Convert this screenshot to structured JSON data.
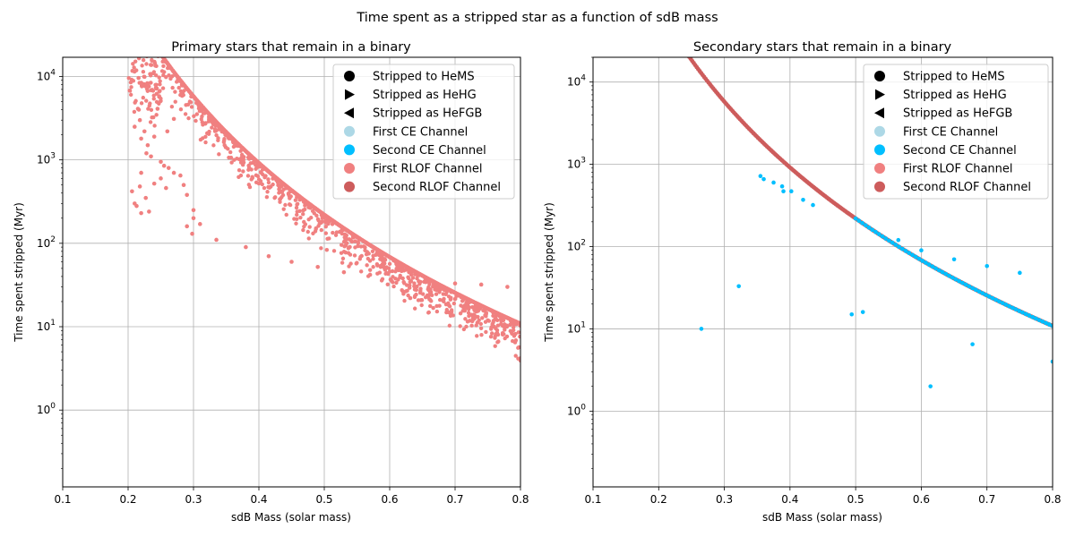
{
  "figure": {
    "suptitle": "Time spent as a stripped star as a function of sdB mass"
  },
  "legend": {
    "entries": [
      {
        "label": "Stripped to HeMS",
        "marker": "circle",
        "color": "#000000"
      },
      {
        "label": "Stripped as HeHG",
        "marker": "triangle-right",
        "color": "#000000"
      },
      {
        "label": "Stripped as HeFGB",
        "marker": "triangle-left",
        "color": "#000000"
      },
      {
        "label": "First CE Channel",
        "marker": "circle",
        "color": "#add8e6"
      },
      {
        "label": "Second CE Channel",
        "marker": "circle",
        "color": "#00bfff"
      },
      {
        "label": "First RLOF Channel",
        "marker": "circle",
        "color": "#f08080"
      },
      {
        "label": "Second RLOF Channel",
        "marker": "circle",
        "color": "#cd5c5c"
      }
    ],
    "placement": "top-right"
  },
  "chart_data": [
    {
      "type": "scatter",
      "title": "Primary stars that remain in a binary",
      "xlabel": "sdB Mass (solar mass)",
      "ylabel": "Time spent stripped (Myr)",
      "xlim": [
        0.1,
        0.8
      ],
      "ylim": [
        0.12,
        17000
      ],
      "yscale": "log",
      "grid": true,
      "x_ticks": [
        "0.1",
        "0.2",
        "0.3",
        "0.4",
        "0.5",
        "0.6",
        "0.7",
        "0.8"
      ],
      "y_ticks": [
        {
          "base": "10",
          "exp": "0"
        },
        {
          "base": "10",
          "exp": "1"
        },
        {
          "base": "10",
          "exp": "2"
        },
        {
          "base": "10",
          "exp": "3"
        },
        {
          "base": "10",
          "exp": "4"
        }
      ],
      "series": [
        {
          "name": "First RLOF Channel",
          "color": "#f08080",
          "curve": {
            "formula": "y = 2.6 * x^-6.4",
            "x_range": [
              0.25,
              0.8
            ],
            "samples": 240,
            "envelope": "upper"
          },
          "scatter_region": {
            "x_range": [
              0.2,
              0.8
            ],
            "n_points": 2300,
            "y_min_fraction_of_curve": 0.55,
            "y_spread_decades": 0.45,
            "seed": 7
          },
          "points": [
            [
              0.216,
              9600
            ],
            [
              0.22,
              8400
            ],
            [
              0.215,
              4100
            ],
            [
              0.218,
              3000
            ],
            [
              0.21,
              2500
            ],
            [
              0.225,
              2200
            ],
            [
              0.22,
              1800
            ],
            [
              0.24,
              1900
            ],
            [
              0.23,
              1500
            ],
            [
              0.228,
              1200
            ],
            [
              0.235,
              1100
            ],
            [
              0.25,
              950
            ],
            [
              0.255,
              850
            ],
            [
              0.262,
              800
            ],
            [
              0.27,
              700
            ],
            [
              0.22,
              700
            ],
            [
              0.218,
              480
            ],
            [
              0.206,
              420
            ],
            [
              0.21,
              300
            ],
            [
              0.213,
              280
            ],
            [
              0.22,
              230
            ],
            [
              0.232,
              240
            ],
            [
              0.227,
              350
            ],
            [
              0.24,
              520
            ],
            [
              0.258,
              460
            ],
            [
              0.25,
              600
            ],
            [
              0.28,
              650
            ],
            [
              0.285,
              500
            ],
            [
              0.29,
              380
            ],
            [
              0.3,
              250
            ],
            [
              0.245,
              4100
            ],
            [
              0.27,
              3100
            ],
            [
              0.26,
              2200
            ],
            [
              0.3,
              200
            ],
            [
              0.31,
              170
            ],
            [
              0.29,
              160
            ],
            [
              0.298,
              130
            ],
            [
              0.335,
              110
            ],
            [
              0.38,
              90
            ],
            [
              0.415,
              70
            ],
            [
              0.45,
              60
            ],
            [
              0.49,
              52
            ],
            [
              0.53,
              45
            ],
            [
              0.57,
              42
            ],
            [
              0.62,
              38
            ],
            [
              0.66,
              35
            ],
            [
              0.7,
              33
            ],
            [
              0.74,
              32
            ],
            [
              0.78,
              30
            ]
          ]
        }
      ]
    },
    {
      "type": "scatter",
      "title": "Secondary stars that remain in a binary",
      "xlabel": "sdB Mass (solar mass)",
      "ylabel": "Time spent stripped (Myr)",
      "xlim": [
        0.1,
        0.8
      ],
      "ylim": [
        0.12,
        20000
      ],
      "yscale": "log",
      "grid": true,
      "x_ticks": [
        "0.1",
        "0.2",
        "0.3",
        "0.4",
        "0.5",
        "0.6",
        "0.7",
        "0.8"
      ],
      "y_ticks": [
        {
          "base": "10",
          "exp": "0"
        },
        {
          "base": "10",
          "exp": "1"
        },
        {
          "base": "10",
          "exp": "2"
        },
        {
          "base": "10",
          "exp": "3"
        },
        {
          "base": "10",
          "exp": "4"
        }
      ],
      "series": [
        {
          "name": "Second RLOF Channel",
          "color": "#cd5c5c",
          "curve": {
            "formula": "y = 2.6 * x^-6.4",
            "x_range": [
              0.21,
              0.8
            ],
            "samples": 260
          },
          "points": []
        },
        {
          "name": "Second CE Channel",
          "color": "#00bfff",
          "curve": {
            "formula": "y = 2.6 * x^-6.4",
            "x_range": [
              0.5,
              0.8
            ],
            "samples": 60
          },
          "points": [
            [
              0.265,
              10
            ],
            [
              0.322,
              33
            ],
            [
              0.355,
              720
            ],
            [
              0.36,
              660
            ],
            [
              0.375,
              600
            ],
            [
              0.388,
              540
            ],
            [
              0.39,
              470
            ],
            [
              0.402,
              470
            ],
            [
              0.42,
              370
            ],
            [
              0.435,
              320
            ],
            [
              0.494,
              15
            ],
            [
              0.511,
              16
            ],
            [
              0.565,
              120
            ],
            [
              0.614,
              2.0
            ],
            [
              0.678,
              6.5
            ],
            [
              0.8,
              4.0
            ],
            [
              0.6,
              90
            ],
            [
              0.65,
              70
            ],
            [
              0.7,
              58
            ],
            [
              0.75,
              48
            ]
          ]
        }
      ]
    }
  ]
}
